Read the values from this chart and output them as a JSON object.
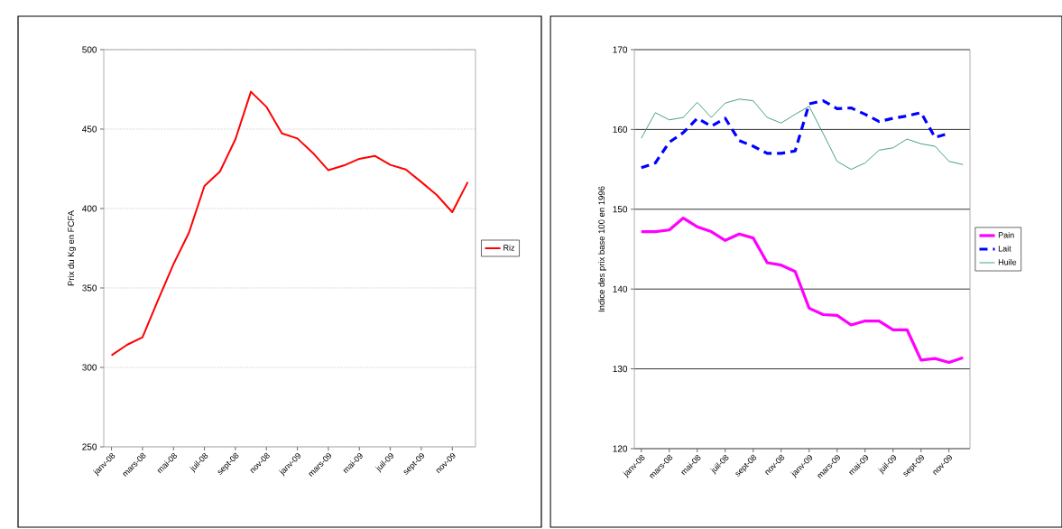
{
  "chart_data": [
    {
      "type": "line",
      "ylabel": "Prix du Kg en FCFA",
      "categories": [
        "janv-08",
        null,
        "mars-08",
        null,
        "mai-08",
        null,
        "juil-08",
        null,
        "sept-08",
        null,
        "nov-08",
        null,
        "janv-09",
        null,
        "mars-09",
        null,
        "mai-09",
        null,
        "juil-09",
        null,
        "sept-09",
        null,
        "nov-09",
        null
      ],
      "series": [
        {
          "name": "Riz",
          "color": "#ff0000",
          "values": [
            307.6,
            314.2,
            319,
            342.2,
            365,
            384.8,
            414.2,
            423.3,
            443.6,
            473.5,
            464,
            447.3,
            444.1,
            435,
            424.1,
            427.1,
            431.3,
            433.1,
            427.5,
            424.6,
            416.7,
            408.5,
            397.7,
            416.7
          ]
        }
      ],
      "ylim": [
        250,
        500
      ],
      "yticks": [
        250,
        300,
        350,
        400,
        450,
        500
      ],
      "grid": "y",
      "legend": "right"
    },
    {
      "type": "line",
      "ylabel": "Indice des prix base 100 en 1996",
      "categories": [
        "janv-08",
        null,
        "mars-08",
        null,
        "mai-08",
        null,
        "juil-08",
        null,
        "sept-08",
        null,
        "nov-08",
        null,
        "janv-09",
        null,
        "mars-09",
        null,
        "mai-09",
        null,
        "juil-09",
        null,
        "sept-09",
        null,
        "nov-09",
        null
      ],
      "series": [
        {
          "name": "Pain",
          "color": "#ff00ff",
          "line_style": "solid",
          "values": [
            147.2,
            147.2,
            147.4,
            148.9,
            147.8,
            147.2,
            146.1,
            146.9,
            146.4,
            143.3,
            143.0,
            142.2,
            137.6,
            136.8,
            136.7,
            135.5,
            136.0,
            136.0,
            134.9,
            134.9,
            131.1,
            131.3,
            130.8,
            131.4
          ]
        },
        {
          "name": "Lait",
          "color": "#0000ff",
          "line_style": "dashed",
          "values": [
            155.2,
            155.8,
            158.4,
            159.6,
            161.4,
            160.4,
            161.4,
            158.6,
            157.9,
            157.0,
            157.0,
            157.3,
            163.2,
            163.6,
            162.6,
            162.7,
            161.9,
            161.0,
            161.4,
            161.7,
            162.1,
            159.0,
            159.5,
            null
          ]
        },
        {
          "name": "Huile",
          "color": "#339966",
          "line_style": "solid",
          "values": [
            158.9,
            162.1,
            161.2,
            161.5,
            163.4,
            161.5,
            163.3,
            163.8,
            163.6,
            161.5,
            160.8,
            161.9,
            162.9,
            159.5,
            156.0,
            155.0,
            155.8,
            157.4,
            157.7,
            158.8,
            158.2,
            157.9,
            156.0,
            155.6
          ]
        }
      ],
      "ylim": [
        120,
        170
      ],
      "yticks": [
        120,
        130,
        140,
        150,
        160,
        170
      ],
      "grid": "y",
      "legend": "right"
    }
  ]
}
